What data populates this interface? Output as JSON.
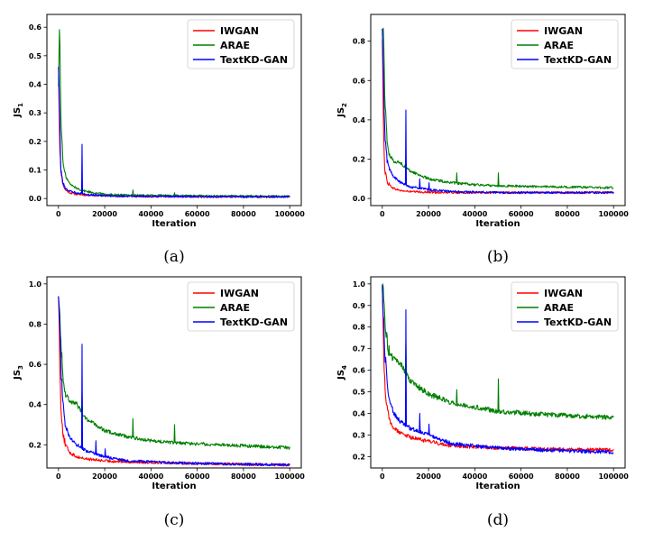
{
  "chart_data": [
    {
      "type": "line",
      "caption": "(a)",
      "ylabel": "JS",
      "ylabel_sub": "1",
      "xlabel": "Iteration",
      "xlim": [
        0,
        100000
      ],
      "ylim": [
        0,
        0.62
      ],
      "xticks": [
        0,
        20000,
        40000,
        60000,
        80000,
        100000
      ],
      "yticks": [
        0.0,
        0.1,
        0.2,
        0.3,
        0.4,
        0.5,
        0.6
      ],
      "ytick_labels": [
        "0.0",
        "0.1",
        "0.2",
        "0.3",
        "0.4",
        "0.5",
        "0.6"
      ],
      "legend_position": "top-right",
      "series": [
        {
          "name": "IWGAN",
          "color": "#ff0000",
          "x": [
            0,
            500,
            1000,
            2000,
            3000,
            5000,
            8000,
            12000,
            20000,
            30000,
            50000,
            70000,
            100000
          ],
          "y": [
            0.47,
            0.2,
            0.1,
            0.05,
            0.03,
            0.02,
            0.015,
            0.012,
            0.01,
            0.008,
            0.007,
            0.006,
            0.006
          ]
        },
        {
          "name": "ARAE",
          "color": "#008000",
          "x": [
            0,
            500,
            1000,
            1500,
            2000,
            3000,
            5000,
            8000,
            12000,
            20000,
            30000,
            50000,
            70000,
            100000
          ],
          "y": [
            0.4,
            0.62,
            0.3,
            0.2,
            0.12,
            0.08,
            0.05,
            0.035,
            0.025,
            0.015,
            0.012,
            0.01,
            0.009,
            0.008
          ],
          "spikes": [
            [
              10000,
              0.04
            ],
            [
              32000,
              0.03
            ],
            [
              50000,
              0.02
            ]
          ]
        },
        {
          "name": "TextKD-GAN",
          "color": "#0000ff",
          "x": [
            0,
            500,
            1000,
            2000,
            3000,
            5000,
            8000,
            12000,
            20000,
            30000,
            50000,
            70000,
            100000
          ],
          "y": [
            0.47,
            0.3,
            0.1,
            0.05,
            0.035,
            0.025,
            0.02,
            0.015,
            0.01,
            0.008,
            0.007,
            0.006,
            0.006
          ],
          "spikes": [
            [
              10000,
              0.19
            ]
          ]
        }
      ]
    },
    {
      "type": "line",
      "caption": "(b)",
      "ylabel": "JS",
      "ylabel_sub": "2",
      "xlabel": "Iteration",
      "xlim": [
        0,
        100000
      ],
      "ylim": [
        0,
        0.9
      ],
      "xticks": [
        0,
        20000,
        40000,
        60000,
        80000,
        100000
      ],
      "yticks": [
        0.0,
        0.2,
        0.4,
        0.6,
        0.8
      ],
      "ytick_labels": [
        "0.0",
        "0.2",
        "0.4",
        "0.6",
        "0.8"
      ],
      "legend_position": "top-right",
      "series": [
        {
          "name": "IWGAN",
          "color": "#ff0000",
          "x": [
            0,
            500,
            1000,
            2000,
            3000,
            5000,
            8000,
            12000,
            20000,
            30000,
            50000,
            70000,
            100000
          ],
          "y": [
            0.8,
            0.4,
            0.15,
            0.09,
            0.07,
            0.05,
            0.04,
            0.035,
            0.032,
            0.03,
            0.03,
            0.03,
            0.03
          ]
        },
        {
          "name": "ARAE",
          "color": "#008000",
          "x": [
            0,
            500,
            1000,
            2000,
            3000,
            5000,
            8000,
            12000,
            20000,
            30000,
            40000,
            50000,
            70000,
            100000
          ],
          "y": [
            0.85,
            0.88,
            0.55,
            0.3,
            0.22,
            0.19,
            0.18,
            0.14,
            0.1,
            0.08,
            0.07,
            0.065,
            0.06,
            0.055
          ],
          "spikes": [
            [
              10000,
              0.2
            ],
            [
              32000,
              0.13
            ],
            [
              50000,
              0.13
            ]
          ]
        },
        {
          "name": "TextKD-GAN",
          "color": "#0000ff",
          "x": [
            0,
            500,
            1000,
            2000,
            3000,
            5000,
            8000,
            12000,
            20000,
            30000,
            50000,
            70000,
            100000
          ],
          "y": [
            0.85,
            0.6,
            0.35,
            0.2,
            0.15,
            0.11,
            0.08,
            0.06,
            0.045,
            0.035,
            0.03,
            0.03,
            0.03
          ],
          "spikes": [
            [
              10000,
              0.45
            ],
            [
              16000,
              0.1
            ],
            [
              20000,
              0.08
            ]
          ]
        }
      ]
    },
    {
      "type": "line",
      "caption": "(c)",
      "ylabel": "JS",
      "ylabel_sub": "3",
      "xlabel": "Iteration",
      "xlim": [
        0,
        100000
      ],
      "ylim": [
        0.12,
        1.0
      ],
      "xticks": [
        0,
        20000,
        40000,
        60000,
        80000,
        100000
      ],
      "yticks": [
        0.2,
        0.4,
        0.6,
        0.8,
        1.0
      ],
      "ytick_labels": [
        "0.2",
        "0.4",
        "0.6",
        "0.8",
        "1.0"
      ],
      "legend_position": "top-right",
      "series": [
        {
          "name": "IWGAN",
          "color": "#ff0000",
          "x": [
            0,
            500,
            1000,
            2000,
            3000,
            5000,
            8000,
            12000,
            20000,
            30000,
            50000,
            70000,
            100000
          ],
          "y": [
            0.98,
            0.65,
            0.4,
            0.25,
            0.2,
            0.16,
            0.14,
            0.13,
            0.12,
            0.115,
            0.11,
            0.105,
            0.1
          ]
        },
        {
          "name": "ARAE",
          "color": "#008000",
          "x": [
            0,
            500,
            1000,
            2000,
            3000,
            5000,
            8000,
            12000,
            20000,
            30000,
            40000,
            50000,
            70000,
            100000
          ],
          "y": [
            0.98,
            0.9,
            0.7,
            0.55,
            0.45,
            0.42,
            0.4,
            0.33,
            0.27,
            0.24,
            0.22,
            0.21,
            0.2,
            0.185
          ],
          "spikes": [
            [
              10000,
              0.46
            ],
            [
              32000,
              0.33
            ],
            [
              50000,
              0.3
            ]
          ]
        },
        {
          "name": "TextKD-GAN",
          "color": "#0000ff",
          "x": [
            0,
            500,
            1000,
            2000,
            3000,
            5000,
            8000,
            12000,
            20000,
            30000,
            50000,
            70000,
            100000
          ],
          "y": [
            0.98,
            0.8,
            0.6,
            0.4,
            0.3,
            0.23,
            0.2,
            0.17,
            0.14,
            0.12,
            0.11,
            0.105,
            0.1
          ],
          "spikes": [
            [
              10000,
              0.7
            ],
            [
              16000,
              0.22
            ],
            [
              20000,
              0.18
            ]
          ]
        }
      ]
    },
    {
      "type": "line",
      "caption": "(d)",
      "ylabel": "JS",
      "ylabel_sub": "4",
      "xlabel": "Iteration",
      "xlim": [
        0,
        100000
      ],
      "ylim": [
        0.18,
        1.0
      ],
      "xticks": [
        0,
        20000,
        40000,
        60000,
        80000,
        100000
      ],
      "yticks": [
        0.2,
        0.3,
        0.4,
        0.5,
        0.6,
        0.7,
        0.8,
        0.9,
        1.0
      ],
      "ytick_labels": [
        "0.2",
        "0.3",
        "0.4",
        "0.5",
        "0.6",
        "0.7",
        "0.8",
        "0.9",
        "1.0"
      ],
      "legend_position": "top-right",
      "series": [
        {
          "name": "IWGAN",
          "color": "#ff0000",
          "x": [
            0,
            500,
            1000,
            2000,
            3000,
            5000,
            8000,
            12000,
            20000,
            30000,
            50000,
            70000,
            100000
          ],
          "y": [
            1.0,
            0.75,
            0.55,
            0.42,
            0.37,
            0.33,
            0.31,
            0.29,
            0.27,
            0.25,
            0.24,
            0.235,
            0.23
          ]
        },
        {
          "name": "ARAE",
          "color": "#008000",
          "x": [
            0,
            500,
            1000,
            2000,
            3000,
            5000,
            8000,
            12000,
            20000,
            30000,
            40000,
            50000,
            70000,
            100000
          ],
          "y": [
            1.0,
            0.95,
            0.85,
            0.75,
            0.68,
            0.65,
            0.63,
            0.55,
            0.49,
            0.45,
            0.43,
            0.41,
            0.395,
            0.38
          ],
          "spikes": [
            [
              10000,
              0.73
            ],
            [
              32000,
              0.51
            ],
            [
              50000,
              0.56
            ]
          ]
        },
        {
          "name": "TextKD-GAN",
          "color": "#0000ff",
          "x": [
            0,
            500,
            1000,
            2000,
            3000,
            5000,
            8000,
            12000,
            20000,
            30000,
            50000,
            70000,
            100000
          ],
          "y": [
            1.0,
            0.85,
            0.7,
            0.55,
            0.47,
            0.4,
            0.36,
            0.33,
            0.3,
            0.26,
            0.24,
            0.23,
            0.22
          ],
          "spikes": [
            [
              10000,
              0.88
            ],
            [
              16000,
              0.4
            ],
            [
              20000,
              0.35
            ]
          ]
        }
      ]
    }
  ]
}
